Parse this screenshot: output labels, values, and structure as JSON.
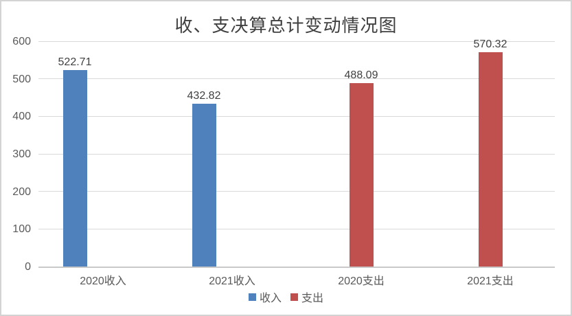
{
  "title": "收、支决算总计变动情况图",
  "colors": {
    "income_series": "#4F81BD",
    "expense_series": "#C0504D",
    "gridline": "#D9D9D9",
    "axis_line": "#C9C9C9",
    "tick_label": "#595959",
    "data_label": "#3F3F3F",
    "title_text": "#404040",
    "chart_border": "#D3D3D3"
  },
  "chart_data": {
    "type": "bar",
    "title": "收、支决算总计变动情况图",
    "categories": [
      "2020收入",
      "2021收入",
      "2020支出",
      "2021支出"
    ],
    "series": [
      {
        "name": "收入",
        "color": "#4F81BD",
        "values": [
          522.71,
          432.82,
          null,
          null
        ]
      },
      {
        "name": "支出",
        "color": "#C0504D",
        "values": [
          null,
          null,
          488.09,
          570.32
        ]
      }
    ],
    "data_labels": [
      "522.71",
      "432.82",
      "488.09",
      "570.32"
    ],
    "xlabel": "",
    "ylabel": "",
    "ylim": [
      0,
      600
    ],
    "yticks": [
      0,
      100,
      200,
      300,
      400,
      500,
      600
    ],
    "grid": true,
    "data_labels_shown": true,
    "legend_position": "bottom-center"
  }
}
